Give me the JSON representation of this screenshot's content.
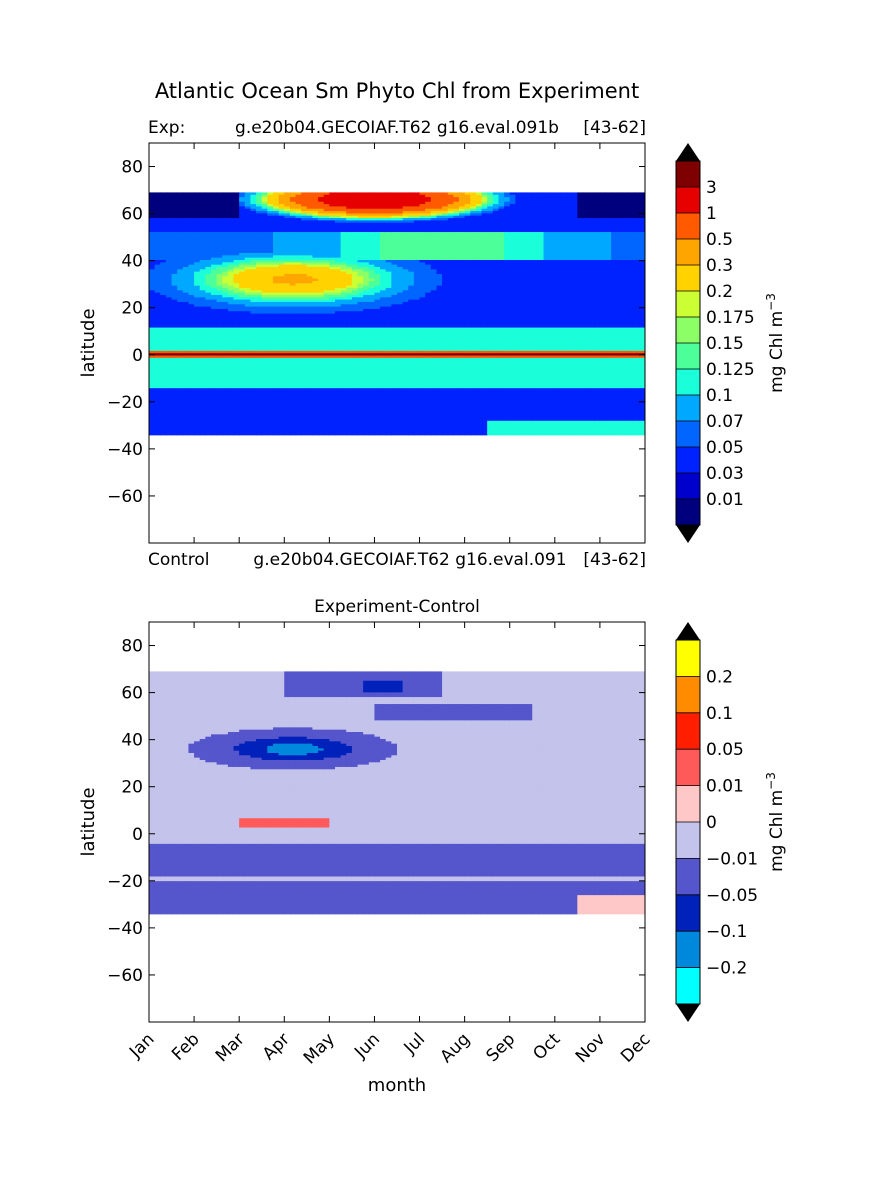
{
  "figure": {
    "title": "Atlantic Ocean Sm Phyto Chl from Experiment"
  },
  "chart_data": [
    {
      "type": "heatmap",
      "panel": "top",
      "subtitle_left": "Exp:",
      "subtitle_center": "g.e20b04.GECOIAF.T62 g16.eval.091b",
      "subtitle_right": "[43-62]",
      "xlabel": "",
      "ylabel": "latitude",
      "xlim": [
        0,
        11
      ],
      "ylim": [
        -80,
        90
      ],
      "yticks": [
        80,
        60,
        40,
        20,
        0,
        -20,
        -40,
        -60
      ],
      "data_lat_range": [
        -34,
        69
      ],
      "colorbar_label": "mg Chl m",
      "colorbar_label_exponent": "−3",
      "colorbar_levels": [
        "3",
        "1",
        "0.5",
        "0.3",
        "0.2",
        "0.175",
        "0.15",
        "0.125",
        "0.1",
        "0.07",
        "0.05",
        "0.03",
        "0.01"
      ],
      "colorbar_colors": [
        "#7f0000",
        "#e60000",
        "#ff5a00",
        "#ffa500",
        "#ffd200",
        "#ccff33",
        "#8cff66",
        "#4dff99",
        "#1affd9",
        "#00a8ff",
        "#0066ff",
        "#0022ff",
        "#0000cc",
        "#00007f"
      ]
    },
    {
      "type": "heatmap",
      "panel": "bottom",
      "subtitle_left": "Control",
      "subtitle_center": "g.e20b04.GECOIAF.T62 g16.eval.091",
      "subtitle_right": "[43-62]",
      "title": "Experiment-Control",
      "xlabel": "month",
      "ylabel": "latitude",
      "xlim": [
        0,
        11
      ],
      "ylim": [
        -80,
        90
      ],
      "yticks": [
        80,
        60,
        40,
        20,
        0,
        -20,
        -40,
        -60
      ],
      "xticks": [
        "Jan",
        "Feb",
        "Mar",
        "Apr",
        "May",
        "Jun",
        "Jul",
        "Aug",
        "Sep",
        "Oct",
        "Nov",
        "Dec"
      ],
      "data_lat_range": [
        -34,
        69
      ],
      "colorbar_label": "mg Chl m",
      "colorbar_label_exponent": "−3",
      "colorbar_levels": [
        "0.2",
        "0.1",
        "0.05",
        "0.01",
        "0",
        "-0.01",
        "-0.05",
        "-0.1",
        "-0.2"
      ],
      "colorbar_colors": [
        "#ffff00",
        "#ff8c00",
        "#ff1e00",
        "#ff5a5a",
        "#ffc8c8",
        "#c3c3eb",
        "#5555cc",
        "#0022bb",
        "#0088dd",
        "#00ffff"
      ]
    }
  ]
}
